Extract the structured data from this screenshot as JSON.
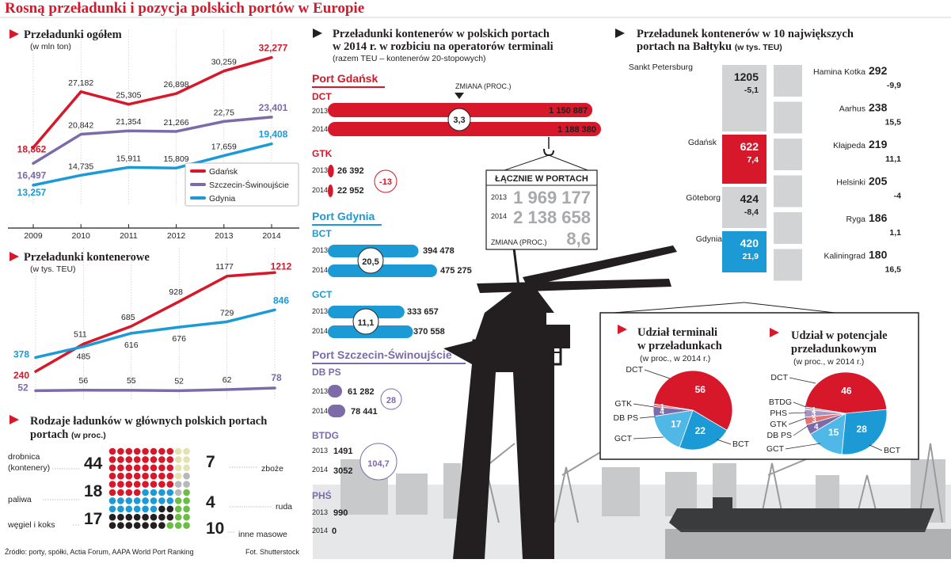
{
  "page_title": "Rosną przeładunki i pozycja polskich portów w Europie",
  "colors": {
    "gdansk": "#d7182a",
    "szczecin": "#7c6aa9",
    "gdynia": "#1c9ad6",
    "dark": "#231f20",
    "gray": "#d1d3d4"
  },
  "icons": {
    "section_marker": "triangle-right-icon",
    "pointer": "triangle-down-icon"
  },
  "footer": {
    "source": "Źródło: porty, spółki, Actia Forum, AAPA World Port Ranking",
    "photo": "Fot. Shutterstock"
  },
  "chart_data": [
    {
      "id": "total",
      "type": "line",
      "title": "Przeładunki ogółem",
      "subtitle": "(w mln ton)",
      "x": [
        "2009",
        "2010",
        "2011",
        "2012",
        "2013",
        "2014"
      ],
      "ylim": [
        11,
        34
      ],
      "legend": "right",
      "series": [
        {
          "name": "Gdańsk",
          "color": "#d7182a",
          "values": [
            18.862,
            27.182,
            25.305,
            26.898,
            30.259,
            32.277
          ],
          "labels": [
            "18,862",
            "27,182",
            "25,305",
            "26,898",
            "30,259",
            "32,277"
          ]
        },
        {
          "name": "Szczecin-Świnoujście",
          "color": "#7c6aa9",
          "values": [
            16.497,
            20.842,
            21.354,
            21.266,
            22.75,
            23.401
          ],
          "labels": [
            "16,497",
            "20,842",
            "21,354",
            "21,266",
            "22,75",
            "23,401"
          ]
        },
        {
          "name": "Gdynia",
          "color": "#1c9ad6",
          "values": [
            13.257,
            14.735,
            15.911,
            15.809,
            17.659,
            19.408
          ],
          "labels": [
            "13,257",
            "14,735",
            "15,911",
            "15,809",
            "17,659",
            "19,408"
          ]
        }
      ]
    },
    {
      "id": "containers",
      "type": "line",
      "title": "Przeładunki kontenerowe",
      "subtitle": "(w tys. TEU)",
      "x": [
        "2009",
        "2010",
        "2011",
        "2012",
        "2013",
        "2014"
      ],
      "ylim": [
        0,
        1300
      ],
      "series": [
        {
          "name": "Gdańsk",
          "color": "#d7182a",
          "values": [
            240,
            511,
            685,
            928,
            1177,
            1212
          ],
          "labels": [
            "240",
            "511",
            "685",
            "928",
            "1177",
            "1212"
          ]
        },
        {
          "name": "Gdynia",
          "color": "#1c9ad6",
          "values": [
            378,
            485,
            616,
            676,
            729,
            846
          ],
          "labels": [
            "378",
            "485",
            "616",
            "676",
            "729",
            "846"
          ]
        },
        {
          "name": "Szczecin-Świnoujście",
          "color": "#7c6aa9",
          "values": [
            52,
            56,
            55,
            52,
            62,
            78
          ],
          "labels": [
            "52",
            "56",
            "55",
            "52",
            "62",
            "78"
          ]
        }
      ]
    },
    {
      "id": "cargo",
      "type": "bar",
      "title": "Rodzaje ładunków w głównych polskich portach",
      "subtitle": "(w proc.)",
      "categories": [
        {
          "name": "drobnica (kontenery)",
          "value": 44,
          "label": "44",
          "color": "#d7182a"
        },
        {
          "name": "paliwa",
          "value": 18,
          "label": "18",
          "color": "#1c9ad6"
        },
        {
          "name": "węgiel i koks",
          "value": 17,
          "label": "17",
          "color": "#231f20"
        },
        {
          "name": "zboże",
          "value": 7,
          "label": "7",
          "color": "#e3e2b0"
        },
        {
          "name": "ruda",
          "value": 4,
          "label": "4",
          "color": "#b7b8b9"
        },
        {
          "name": "inne masowe",
          "value": 10,
          "label": "10",
          "color": "#6cbd45"
        }
      ]
    },
    {
      "id": "terminals",
      "type": "bar",
      "title": "Przeładunki kontenerów w polskich portach w 2014 r. w rozbiciu na operatorów terminali",
      "subtitle": "(razem TEU – kontenerów 20-stopowych)",
      "change_label": "ZMIANA (PROC.)",
      "ports": [
        {
          "name": "Port Gdańsk",
          "color": "#d7182a",
          "terminals": [
            {
              "name": "DCT",
              "change": "3,3",
              "rows": [
                {
                  "year": "2013",
                  "value": 1150887,
                  "label": "1 150 887"
                },
                {
                  "year": "2014",
                  "value": 1188380,
                  "label": "1 188 380"
                }
              ]
            },
            {
              "name": "GTK",
              "change": "-13",
              "rows": [
                {
                  "year": "2013",
                  "value": 26392,
                  "label": "26 392"
                },
                {
                  "year": "2014",
                  "value": 22952,
                  "label": "22 952"
                }
              ]
            }
          ]
        },
        {
          "name": "Port Gdynia",
          "color": "#1c9ad6",
          "terminals": [
            {
              "name": "BCT",
              "change": "20,5",
              "rows": [
                {
                  "year": "2013",
                  "value": 394478,
                  "label": "394 478"
                },
                {
                  "year": "2014",
                  "value": 475275,
                  "label": "475 275"
                }
              ]
            },
            {
              "name": "GCT",
              "change": "11,1",
              "rows": [
                {
                  "year": "2013",
                  "value": 333657,
                  "label": "333 657"
                },
                {
                  "year": "2014",
                  "value": 370558,
                  "label": "370 558"
                }
              ]
            }
          ]
        },
        {
          "name": "Port Szczecin-Świnoujście",
          "color": "#7c6aa9",
          "terminals": [
            {
              "name": "DB PS",
              "change": "28",
              "rows": [
                {
                  "year": "2013",
                  "value": 61282,
                  "label": "61 282"
                },
                {
                  "year": "2014",
                  "value": 78441,
                  "label": "78 441"
                }
              ]
            },
            {
              "name": "BTDG",
              "change": "104,7",
              "rows": [
                {
                  "year": "2013",
                  "value": 1491,
                  "label": "1491"
                },
                {
                  "year": "2014",
                  "value": 3052,
                  "label": "3052"
                }
              ]
            },
            {
              "name": "PHŚ",
              "change": "",
              "rows": [
                {
                  "year": "2013",
                  "value": 990,
                  "label": "990"
                },
                {
                  "year": "2014",
                  "value": 0,
                  "label": "0"
                }
              ]
            }
          ]
        }
      ],
      "total": {
        "title": "ŁĄCZNIE W PORTACH",
        "rows": [
          {
            "year": "2013",
            "label": "1 969 177"
          },
          {
            "year": "2014",
            "label": "2 138 658"
          }
        ],
        "change_label": "ZMIANA (PROC.)",
        "change": "8,6"
      }
    },
    {
      "id": "baltic",
      "type": "bar",
      "title": "Przeładunek kontenerów w 10 największych portach na Bałtyku",
      "subtitle": "(w tys. TEU)",
      "left": [
        {
          "name": "Sankt Petersburg",
          "value": 1205,
          "label": "1205",
          "change": "-5,1",
          "color": "#d1d3d4"
        },
        {
          "name": "Gdańsk",
          "value": 622,
          "label": "622",
          "change": "7,4",
          "color": "#d7182a"
        },
        {
          "name": "Göteborg",
          "value": 424,
          "label": "424",
          "change": "-8,4",
          "color": "#d1d3d4"
        },
        {
          "name": "Gdynia",
          "value": 420,
          "label": "420",
          "change": "21,9",
          "color": "#1c9ad6"
        }
      ],
      "right": [
        {
          "name": "Hamina Kotka",
          "value": 292,
          "label": "292",
          "change": "-9,9"
        },
        {
          "name": "Aarhus",
          "value": 238,
          "label": "238",
          "change": "15,5"
        },
        {
          "name": "Kłajpeda",
          "value": 219,
          "label": "219",
          "change": "11,1"
        },
        {
          "name": "Helsinki",
          "value": 205,
          "label": "205",
          "change": "-4"
        },
        {
          "name": "Ryga",
          "value": 186,
          "label": "186",
          "change": "1,1"
        },
        {
          "name": "Kaliningrad",
          "value": 180,
          "label": "180",
          "change": "16,5"
        }
      ]
    },
    {
      "id": "share-handling",
      "type": "pie",
      "title": "Udział terminali w przeładunkach",
      "subtitle": "(w proc., w 2014 r.)",
      "slices": [
        {
          "name": "DCT",
          "value": 56,
          "label": "56",
          "color": "#d7182a"
        },
        {
          "name": "BCT",
          "value": 22,
          "label": "22",
          "color": "#1c9ad6"
        },
        {
          "name": "GCT",
          "value": 17,
          "label": "17",
          "color": "#4fb8e7"
        },
        {
          "name": "DB PS",
          "value": 4,
          "label": "4",
          "color": "#7c6aa9"
        },
        {
          "name": "GTK",
          "value": 1,
          "label": "1",
          "color": "#e8706f"
        }
      ]
    },
    {
      "id": "share-capacity",
      "type": "pie",
      "title": "Udział w potencjale przeładunkowym",
      "subtitle": "(w proc., w 2014 r.)",
      "slices": [
        {
          "name": "DCT",
          "value": 46,
          "label": "46",
          "color": "#d7182a"
        },
        {
          "name": "BCT",
          "value": 28,
          "label": "28",
          "color": "#1c9ad6"
        },
        {
          "name": "GCT",
          "value": 15,
          "label": "15",
          "color": "#4fb8e7"
        },
        {
          "name": "DB PS",
          "value": 4,
          "label": "4",
          "color": "#7c6aa9"
        },
        {
          "name": "GTK",
          "value": 3,
          "label": "3",
          "color": "#e8706f"
        },
        {
          "name": "PHS",
          "value": 3,
          "label": "3",
          "color": "#a395c6"
        },
        {
          "name": "BTDG",
          "value": 1,
          "label": "1",
          "color": "#b7b8b9"
        }
      ]
    }
  ]
}
